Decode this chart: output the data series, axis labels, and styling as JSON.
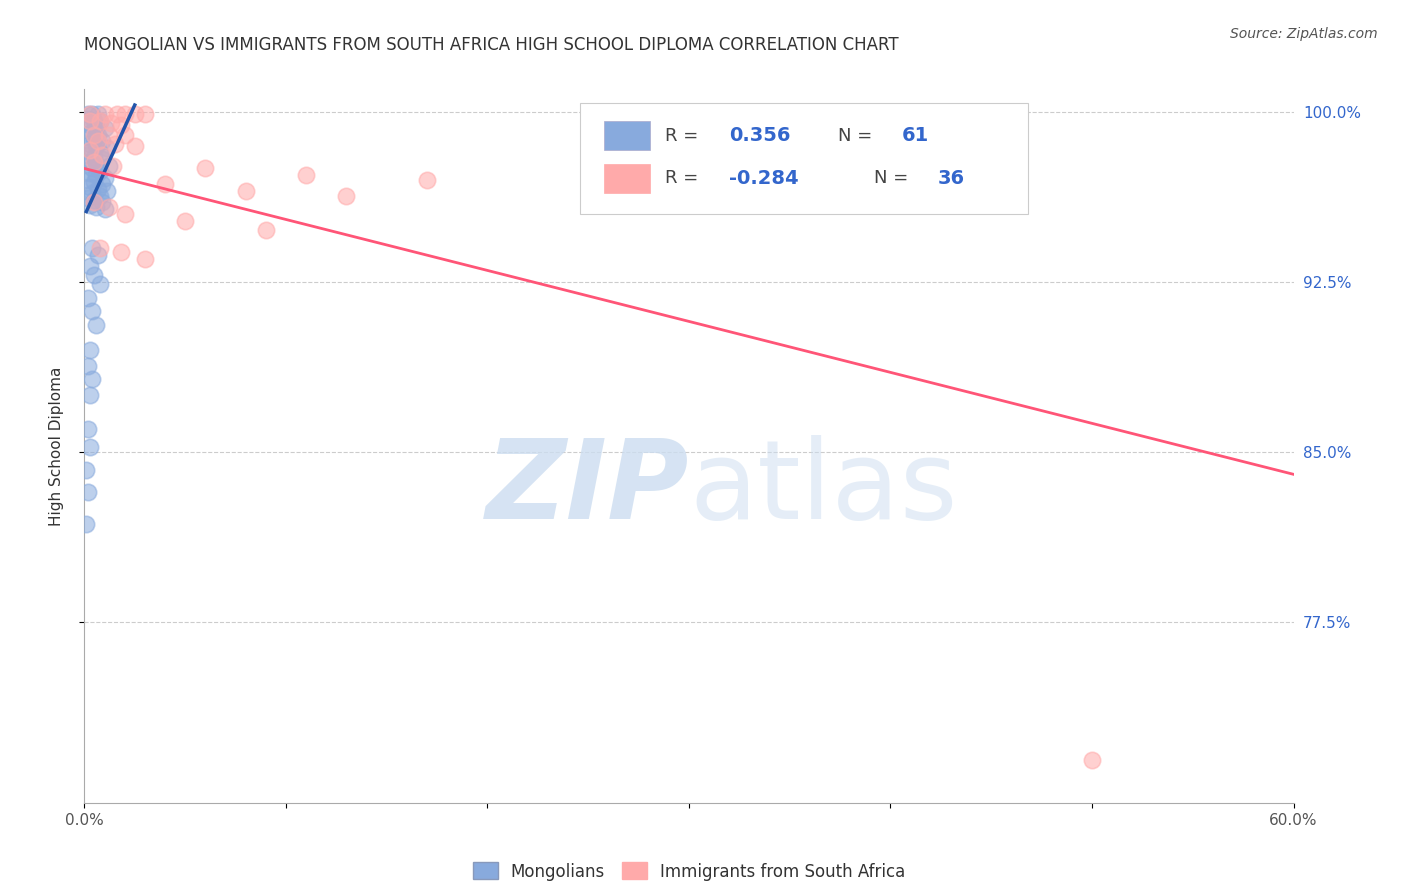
{
  "title": "MONGOLIAN VS IMMIGRANTS FROM SOUTH AFRICA HIGH SCHOOL DIPLOMA CORRELATION CHART",
  "source": "Source: ZipAtlas.com",
  "ylabel_label": "High School Diploma",
  "legend_mongolians": "Mongolians",
  "legend_immigrants": "Immigrants from South Africa",
  "blue_color": "#88AADD",
  "pink_color": "#FFAAAA",
  "trendline_blue": "#2255AA",
  "trendline_pink": "#FF5577",
  "blue_dots": [
    [
      0.002,
      0.999
    ],
    [
      0.004,
      0.999
    ],
    [
      0.007,
      0.999
    ],
    [
      0.002,
      0.997
    ],
    [
      0.005,
      0.996
    ],
    [
      0.008,
      0.996
    ],
    [
      0.003,
      0.994
    ],
    [
      0.006,
      0.993
    ],
    [
      0.01,
      0.993
    ],
    [
      0.004,
      0.991
    ],
    [
      0.007,
      0.99
    ],
    [
      0.002,
      0.989
    ],
    [
      0.005,
      0.988
    ],
    [
      0.009,
      0.987
    ],
    [
      0.003,
      0.986
    ],
    [
      0.006,
      0.985
    ],
    [
      0.011,
      0.984
    ],
    [
      0.004,
      0.983
    ],
    [
      0.008,
      0.982
    ],
    [
      0.002,
      0.981
    ],
    [
      0.005,
      0.98
    ],
    [
      0.009,
      0.979
    ],
    [
      0.003,
      0.978
    ],
    [
      0.006,
      0.977
    ],
    [
      0.012,
      0.976
    ],
    [
      0.004,
      0.975
    ],
    [
      0.008,
      0.974
    ],
    [
      0.003,
      0.973
    ],
    [
      0.006,
      0.972
    ],
    [
      0.01,
      0.971
    ],
    [
      0.002,
      0.97
    ],
    [
      0.005,
      0.969
    ],
    [
      0.009,
      0.968
    ],
    [
      0.003,
      0.967
    ],
    [
      0.007,
      0.966
    ],
    [
      0.011,
      0.965
    ],
    [
      0.004,
      0.964
    ],
    [
      0.008,
      0.963
    ],
    [
      0.002,
      0.962
    ],
    [
      0.005,
      0.961
    ],
    [
      0.009,
      0.96
    ],
    [
      0.003,
      0.959
    ],
    [
      0.006,
      0.958
    ],
    [
      0.01,
      0.957
    ],
    [
      0.004,
      0.94
    ],
    [
      0.007,
      0.937
    ],
    [
      0.003,
      0.932
    ],
    [
      0.005,
      0.928
    ],
    [
      0.008,
      0.924
    ],
    [
      0.002,
      0.918
    ],
    [
      0.004,
      0.912
    ],
    [
      0.006,
      0.906
    ],
    [
      0.003,
      0.895
    ],
    [
      0.002,
      0.888
    ],
    [
      0.004,
      0.882
    ],
    [
      0.003,
      0.875
    ],
    [
      0.002,
      0.86
    ],
    [
      0.003,
      0.852
    ],
    [
      0.001,
      0.842
    ],
    [
      0.002,
      0.832
    ],
    [
      0.001,
      0.818
    ]
  ],
  "pink_dots": [
    [
      0.003,
      0.999
    ],
    [
      0.01,
      0.999
    ],
    [
      0.016,
      0.999
    ],
    [
      0.02,
      0.999
    ],
    [
      0.025,
      0.999
    ],
    [
      0.03,
      0.999
    ],
    [
      0.003,
      0.996
    ],
    [
      0.008,
      0.996
    ],
    [
      0.013,
      0.995
    ],
    [
      0.018,
      0.994
    ],
    [
      0.005,
      0.99
    ],
    [
      0.012,
      0.99
    ],
    [
      0.02,
      0.99
    ],
    [
      0.007,
      0.987
    ],
    [
      0.015,
      0.986
    ],
    [
      0.025,
      0.985
    ],
    [
      0.003,
      0.983
    ],
    [
      0.009,
      0.981
    ],
    [
      0.005,
      0.978
    ],
    [
      0.014,
      0.976
    ],
    [
      0.06,
      0.975
    ],
    [
      0.11,
      0.972
    ],
    [
      0.17,
      0.97
    ],
    [
      0.04,
      0.968
    ],
    [
      0.08,
      0.965
    ],
    [
      0.13,
      0.963
    ],
    [
      0.005,
      0.96
    ],
    [
      0.012,
      0.958
    ],
    [
      0.02,
      0.955
    ],
    [
      0.05,
      0.952
    ],
    [
      0.09,
      0.948
    ],
    [
      0.008,
      0.94
    ],
    [
      0.018,
      0.938
    ],
    [
      0.03,
      0.935
    ],
    [
      0.5,
      0.714
    ]
  ],
  "xlim": [
    0.0,
    0.6
  ],
  "ylim": [
    0.695,
    1.01
  ],
  "yticks": [
    0.775,
    0.85,
    0.925,
    1.0
  ],
  "yticklabels": [
    "77.5%",
    "85.0%",
    "92.5%",
    "100.0%"
  ],
  "xticks": [
    0.0,
    0.1,
    0.2,
    0.3,
    0.4,
    0.5,
    0.6
  ],
  "xticklabels": [
    "0.0%",
    "",
    "",
    "",
    "",
    "",
    "60.0%"
  ],
  "blue_trend_x": [
    0.001,
    0.025
  ],
  "blue_trend_y": [
    0.956,
    1.003
  ],
  "pink_trend_x": [
    0.0,
    0.6
  ],
  "pink_trend_y": [
    0.975,
    0.84
  ]
}
